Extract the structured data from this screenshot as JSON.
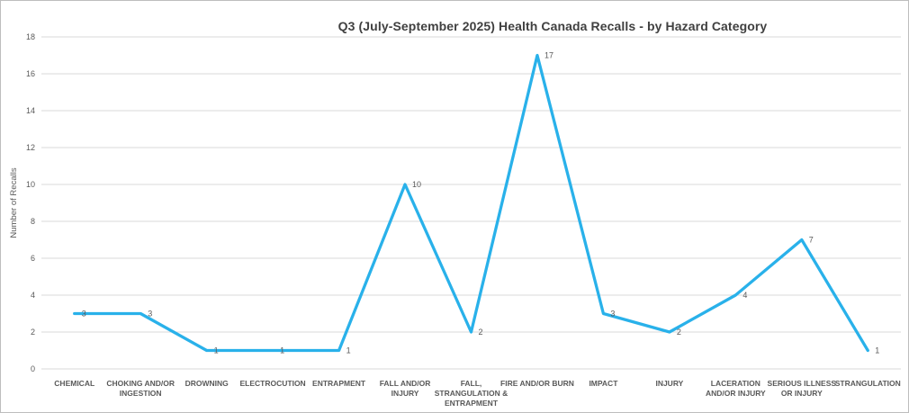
{
  "window": {
    "background_color": "#ffffff",
    "border_color": "#bdbdbd"
  },
  "chart_data": {
    "type": "line",
    "title": "Q3 (July-September 2025) Health Canada Recalls - by Hazard Category",
    "xlabel": "",
    "ylabel": "Number of Recalls",
    "categories": [
      "CHEMICAL",
      "CHOKING AND/OR INGESTION",
      "DROWNING",
      "ELECTROCUTION",
      "ENTRAPMENT",
      "FALL AND/OR INJURY",
      "FALL, STRANGULATION & ENTRAPMENT",
      "FIRE AND/OR BURN",
      "IMPACT",
      "INJURY",
      "LACERATION AND/OR INJURY",
      "SERIOUS ILLNESS OR INJURY",
      "STRANGULATION"
    ],
    "category_label_lines": [
      [
        "CHEMICAL"
      ],
      [
        "CHOKING AND/OR",
        "INGESTION"
      ],
      [
        "DROWNING"
      ],
      [
        "ELECTROCUTION"
      ],
      [
        "ENTRAPMENT"
      ],
      [
        "FALL AND/OR",
        "INJURY"
      ],
      [
        "FALL,",
        "STRANGULATION &",
        "ENTRAPMENT"
      ],
      [
        "FIRE AND/OR BURN"
      ],
      [
        "IMPACT"
      ],
      [
        "INJURY"
      ],
      [
        "LACERATION",
        "AND/OR INJURY"
      ],
      [
        "SERIOUS ILLNESS",
        "OR INJURY"
      ],
      [
        "STRANGULATION"
      ]
    ],
    "values": [
      3,
      3,
      1,
      1,
      1,
      10,
      2,
      17,
      3,
      2,
      4,
      7,
      1
    ],
    "data_labels": [
      "3",
      "3",
      "1",
      "1",
      "1",
      "10",
      "2",
      "17",
      "3",
      "2",
      "4",
      "7",
      "1"
    ],
    "ylim": [
      0,
      18
    ],
    "ytick_step": 2,
    "yticks": [
      "0",
      "2",
      "4",
      "6",
      "8",
      "10",
      "12",
      "14",
      "16",
      "18"
    ],
    "grid": "horizontal gridlines on, vertical off",
    "legend": "none",
    "line_color": "#29b1ea",
    "gridline_color": "#d9d9d9",
    "tick_label_color": "#595959",
    "data_label_color": "#595959",
    "title_color": "#404040"
  }
}
